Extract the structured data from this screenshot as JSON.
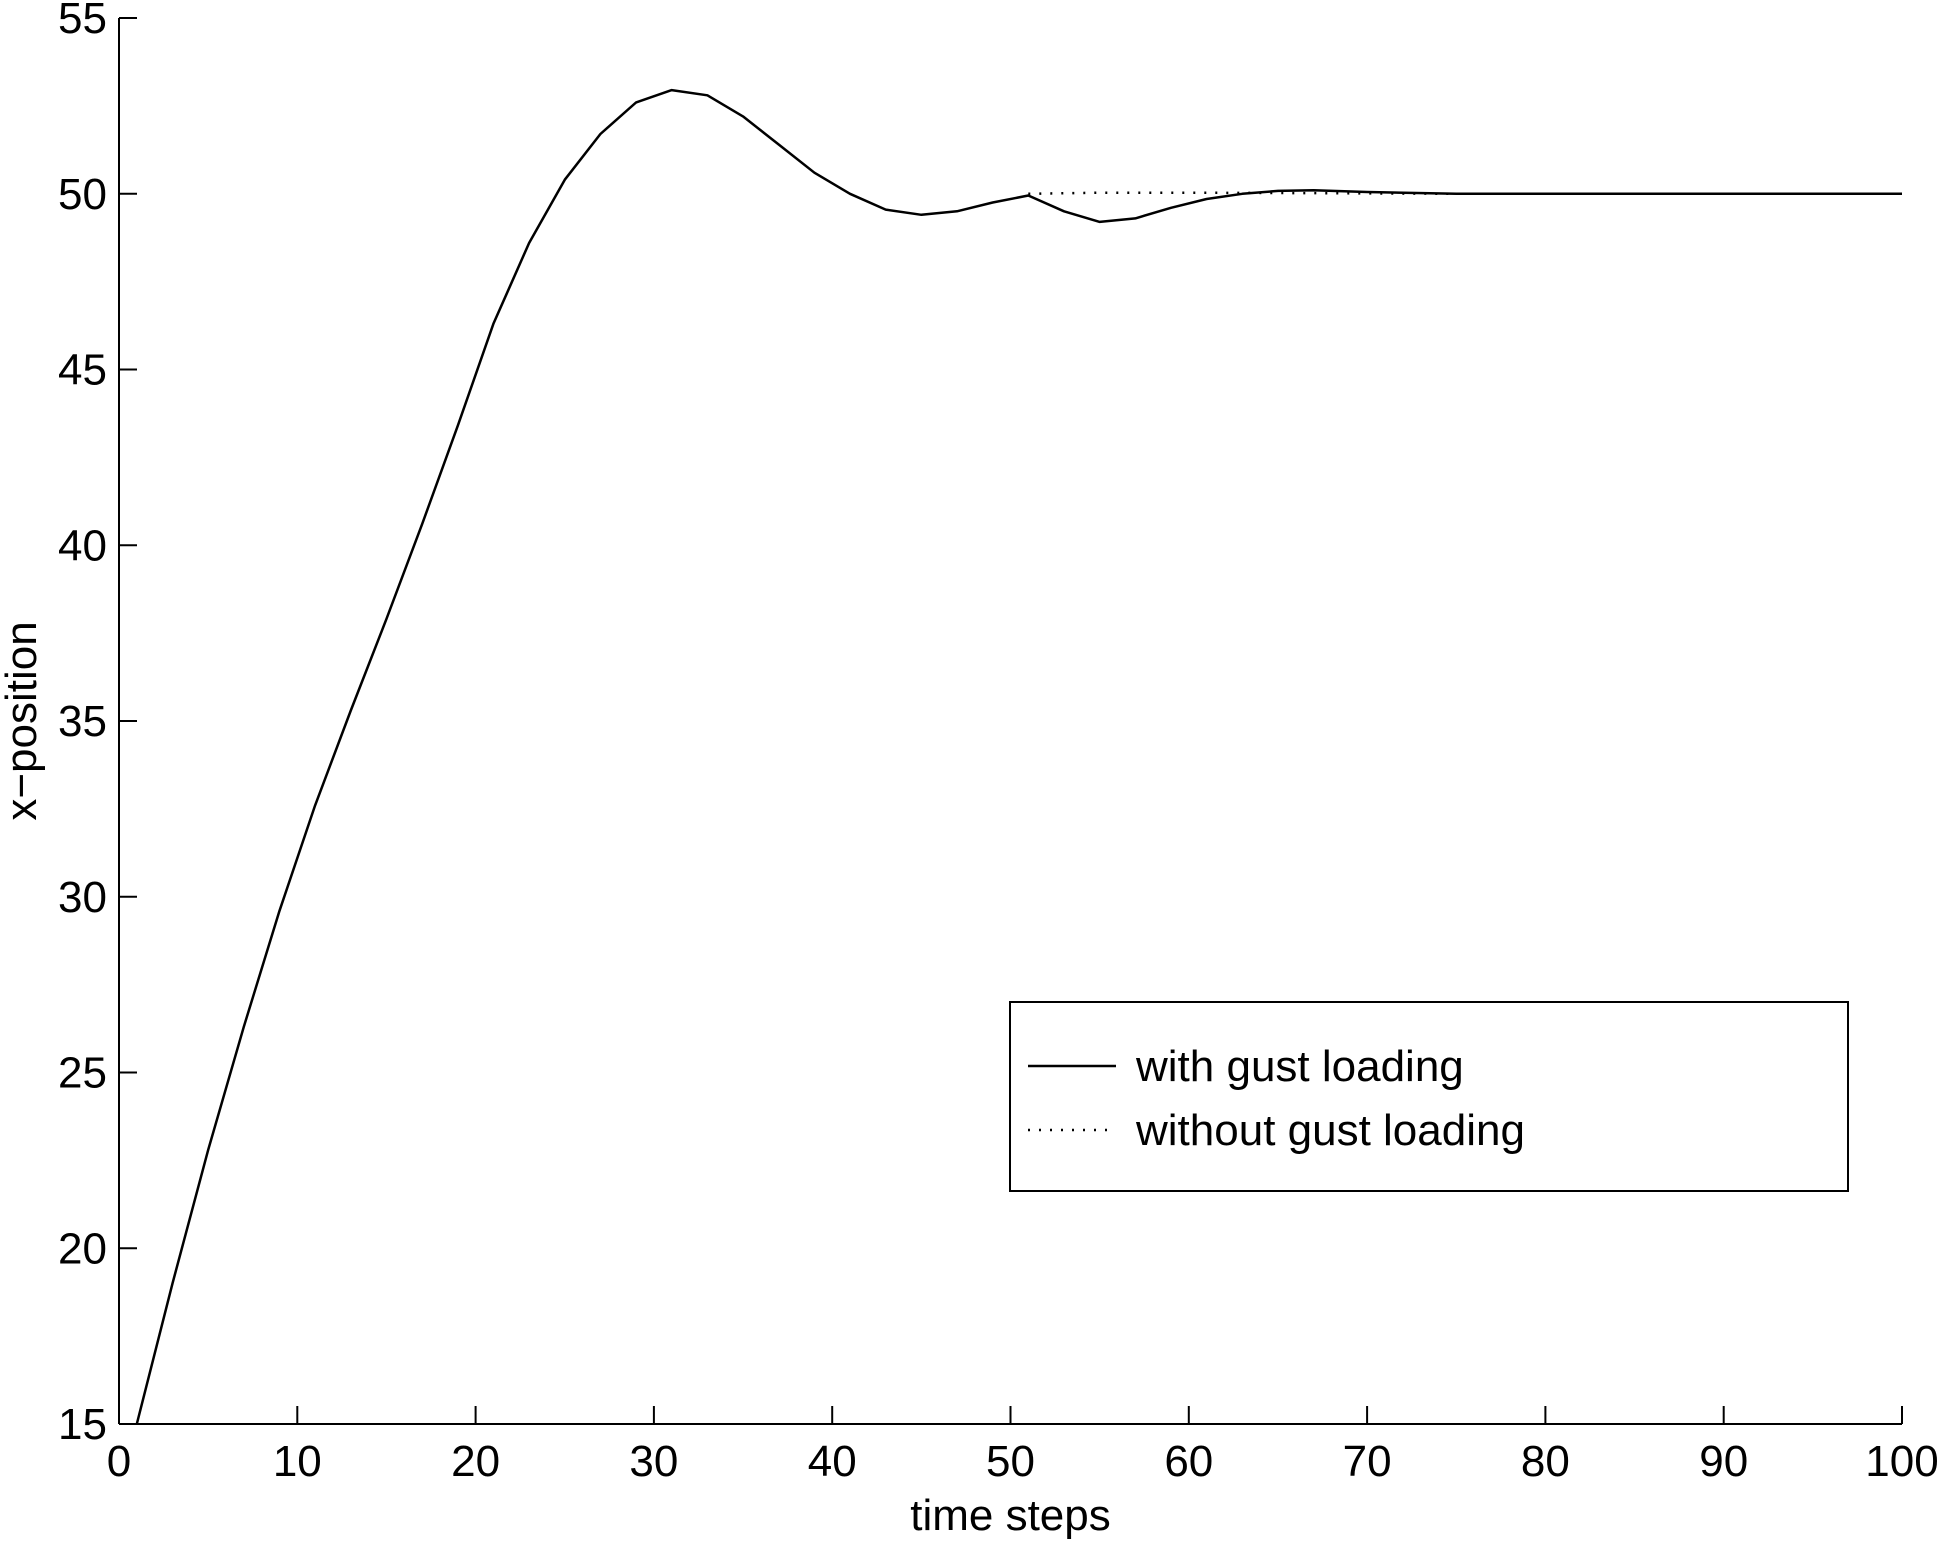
{
  "chart_data": {
    "type": "line",
    "xlabel": "time steps",
    "ylabel": "x−position",
    "xlim": [
      0,
      100
    ],
    "ylim": [
      15,
      55
    ],
    "xticks": [
      0,
      10,
      20,
      30,
      40,
      50,
      60,
      70,
      80,
      90,
      100
    ],
    "yticks": [
      15,
      20,
      25,
      30,
      35,
      40,
      45,
      50,
      55
    ],
    "grid": false,
    "legend_position": "center-right",
    "series": [
      {
        "name": "with gust loading",
        "style": "solid",
        "color": "#000000",
        "points": [
          [
            1,
            15.0
          ],
          [
            3,
            19.0
          ],
          [
            5,
            22.8
          ],
          [
            7,
            26.3
          ],
          [
            9,
            29.6
          ],
          [
            11,
            32.6
          ],
          [
            13,
            35.3
          ],
          [
            15,
            37.9
          ],
          [
            17,
            40.6
          ],
          [
            19,
            43.4
          ],
          [
            21,
            46.3
          ],
          [
            23,
            48.6
          ],
          [
            25,
            50.4
          ],
          [
            27,
            51.7
          ],
          [
            29,
            52.6
          ],
          [
            31,
            52.95
          ],
          [
            33,
            52.8
          ],
          [
            35,
            52.2
          ],
          [
            37,
            51.4
          ],
          [
            39,
            50.6
          ],
          [
            41,
            50.0
          ],
          [
            43,
            49.55
          ],
          [
            45,
            49.4
          ],
          [
            47,
            49.5
          ],
          [
            49,
            49.75
          ],
          [
            51,
            49.95
          ],
          [
            53,
            49.5
          ],
          [
            55,
            49.2
          ],
          [
            57,
            49.3
          ],
          [
            59,
            49.6
          ],
          [
            61,
            49.85
          ],
          [
            63,
            50.0
          ],
          [
            65,
            50.08
          ],
          [
            67,
            50.1
          ],
          [
            70,
            50.05
          ],
          [
            75,
            50.0
          ],
          [
            80,
            50.0
          ],
          [
            90,
            50.0
          ],
          [
            100,
            50.0
          ]
        ]
      },
      {
        "name": "without gust loading",
        "style": "dotted",
        "color": "#000000",
        "points": [
          [
            51,
            50.0
          ],
          [
            55,
            50.03
          ],
          [
            60,
            50.03
          ],
          [
            65,
            50.02
          ],
          [
            70,
            50.01
          ],
          [
            75,
            50.0
          ],
          [
            80,
            50.0
          ],
          [
            90,
            50.0
          ],
          [
            100,
            50.0
          ]
        ]
      }
    ]
  }
}
